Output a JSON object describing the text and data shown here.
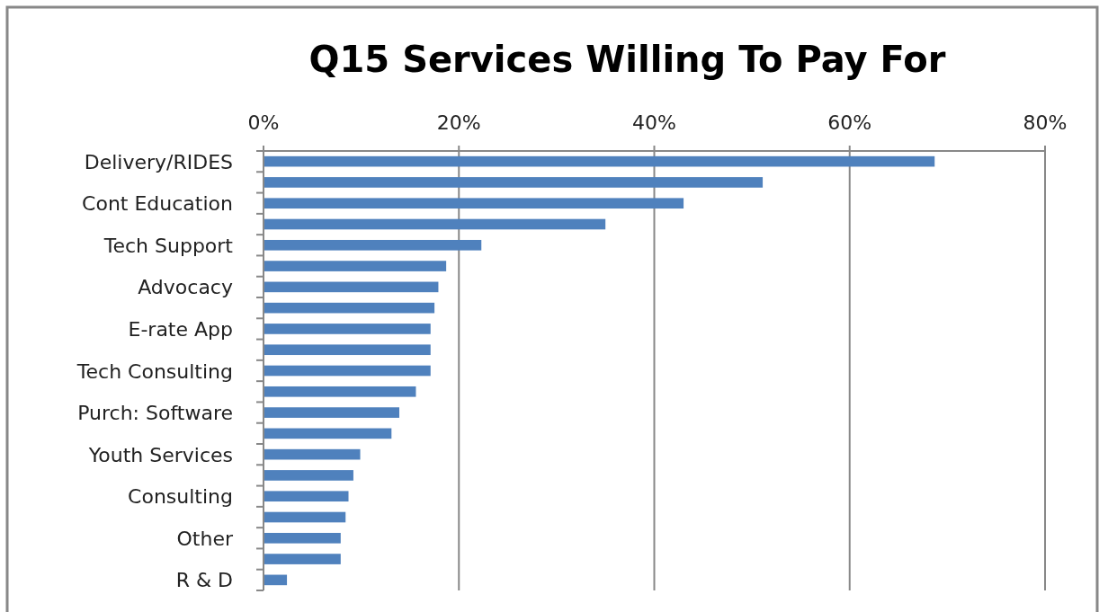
{
  "chart_data": {
    "type": "bar",
    "orientation": "horizontal",
    "title": "Q15 Services Willing To Pay For",
    "categories": [
      "Delivery/RIDES",
      null,
      "Cont Education",
      null,
      "Tech Support",
      null,
      "Advocacy",
      null,
      "E-rate App",
      null,
      "Tech Consulting",
      null,
      "Purch: Software",
      null,
      "Youth Services",
      null,
      "Consulting",
      null,
      "Other",
      null,
      "R & D"
    ],
    "values": [
      68.7,
      51.1,
      43.0,
      35.0,
      22.3,
      18.7,
      17.9,
      17.5,
      17.1,
      17.1,
      17.1,
      15.6,
      13.9,
      13.1,
      9.9,
      9.2,
      8.7,
      8.4,
      7.9,
      7.9,
      2.4
    ],
    "color": "#4f81bd",
    "xlim": [
      0,
      80
    ],
    "xticks": [
      {
        "value": 0,
        "label": "0%"
      },
      {
        "value": 20,
        "label": "20%"
      },
      {
        "value": 40,
        "label": "40%"
      },
      {
        "value": 60,
        "label": "60%"
      },
      {
        "value": 80,
        "label": "80%"
      }
    ],
    "grid": "x"
  }
}
